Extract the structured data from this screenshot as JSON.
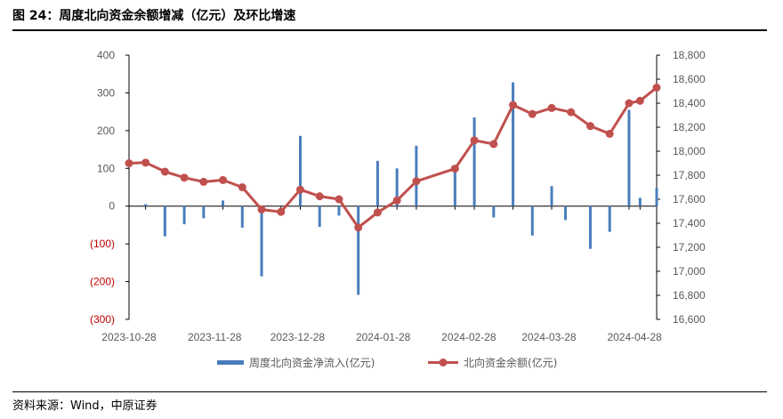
{
  "header": {
    "title": "图 24：周度北向资金余额增减（亿元）及环比增速"
  },
  "footer": {
    "source": "资料来源：Wind，中原证券"
  },
  "colors": {
    "bar": "#4a7ebb",
    "line": "#c0504d",
    "negative_tick": "#c00000",
    "axis": "#000000",
    "tick_text": "#595959"
  },
  "chart_data": {
    "type": "bar+line",
    "title": "",
    "left_axis": {
      "ylim": [
        -300,
        400
      ],
      "ticks": [
        400,
        300,
        200,
        100,
        0,
        -100,
        -200,
        -300
      ],
      "tick_labels": [
        "400",
        "300",
        "200",
        "100",
        "0",
        "(100)",
        "(200)",
        "(300)"
      ]
    },
    "right_axis": {
      "ylim": [
        16600,
        18800
      ],
      "ticks": [
        18800,
        18600,
        18400,
        18200,
        18000,
        17800,
        17600,
        17400,
        17200,
        17000,
        16800,
        16600
      ],
      "tick_labels": [
        "18,800",
        "18,600",
        "18,400",
        "18,200",
        "18,000",
        "17,800",
        "17,600",
        "17,400",
        "17,200",
        "17,000",
        "16,800",
        "16,600"
      ]
    },
    "x_tick_labels": [
      "2023-10-28",
      "2023-11-28",
      "2023-12-28",
      "2024-01-28",
      "2024-02-28",
      "2024-03-28",
      "2024-04-28"
    ],
    "x_range": [
      "2023-10-28",
      "2024-05-06"
    ],
    "grid": false,
    "legend_position": "bottom",
    "bar_series": {
      "name": "周度北向资金净流入(亿元)",
      "axis": "left",
      "points": [
        {
          "x": "2023-11-03",
          "y": 5
        },
        {
          "x": "2023-11-10",
          "y": -80
        },
        {
          "x": "2023-11-17",
          "y": -48
        },
        {
          "x": "2023-11-24",
          "y": -32
        },
        {
          "x": "2023-12-01",
          "y": 15
        },
        {
          "x": "2023-12-08",
          "y": -57
        },
        {
          "x": "2023-12-15",
          "y": -186
        },
        {
          "x": "2023-12-22",
          "y": 0
        },
        {
          "x": "2023-12-29",
          "y": 186
        },
        {
          "x": "2024-01-05",
          "y": -55
        },
        {
          "x": "2024-01-12",
          "y": -25
        },
        {
          "x": "2024-01-19",
          "y": -235
        },
        {
          "x": "2024-01-26",
          "y": 120
        },
        {
          "x": "2024-02-02",
          "y": 100
        },
        {
          "x": "2024-02-09",
          "y": 160
        },
        {
          "x": "2024-02-23",
          "y": 100
        },
        {
          "x": "2024-03-01",
          "y": 235
        },
        {
          "x": "2024-03-08",
          "y": -30
        },
        {
          "x": "2024-03-15",
          "y": 328
        },
        {
          "x": "2024-03-22",
          "y": -78
        },
        {
          "x": "2024-03-29",
          "y": 53
        },
        {
          "x": "2024-04-03",
          "y": -37
        },
        {
          "x": "2024-04-12",
          "y": -113
        },
        {
          "x": "2024-04-19",
          "y": -68
        },
        {
          "x": "2024-04-26",
          "y": 255
        },
        {
          "x": "2024-04-30",
          "y": 22
        },
        {
          "x": "2024-05-06",
          "y": 47
        }
      ]
    },
    "line_series": {
      "name": "北向资金余额(亿元)",
      "axis": "right",
      "points": [
        {
          "x": "2023-10-28",
          "y": 17900
        },
        {
          "x": "2023-11-03",
          "y": 17905
        },
        {
          "x": "2023-11-10",
          "y": 17830
        },
        {
          "x": "2023-11-17",
          "y": 17780
        },
        {
          "x": "2023-11-24",
          "y": 17745
        },
        {
          "x": "2023-12-01",
          "y": 17760
        },
        {
          "x": "2023-12-08",
          "y": 17700
        },
        {
          "x": "2023-12-15",
          "y": 17515
        },
        {
          "x": "2023-12-22",
          "y": 17495
        },
        {
          "x": "2023-12-29",
          "y": 17680
        },
        {
          "x": "2024-01-05",
          "y": 17625
        },
        {
          "x": "2024-01-12",
          "y": 17600
        },
        {
          "x": "2024-01-19",
          "y": 17365
        },
        {
          "x": "2024-01-26",
          "y": 17490
        },
        {
          "x": "2024-02-02",
          "y": 17590
        },
        {
          "x": "2024-02-09",
          "y": 17750
        },
        {
          "x": "2024-02-23",
          "y": 17855
        },
        {
          "x": "2024-03-01",
          "y": 18090
        },
        {
          "x": "2024-03-08",
          "y": 18060
        },
        {
          "x": "2024-03-15",
          "y": 18385
        },
        {
          "x": "2024-03-22",
          "y": 18310
        },
        {
          "x": "2024-03-29",
          "y": 18360
        },
        {
          "x": "2024-04-05",
          "y": 18325
        },
        {
          "x": "2024-04-12",
          "y": 18210
        },
        {
          "x": "2024-04-19",
          "y": 18145
        },
        {
          "x": "2024-04-26",
          "y": 18400
        },
        {
          "x": "2024-04-30",
          "y": 18420
        },
        {
          "x": "2024-05-06",
          "y": 18530
        }
      ]
    }
  }
}
